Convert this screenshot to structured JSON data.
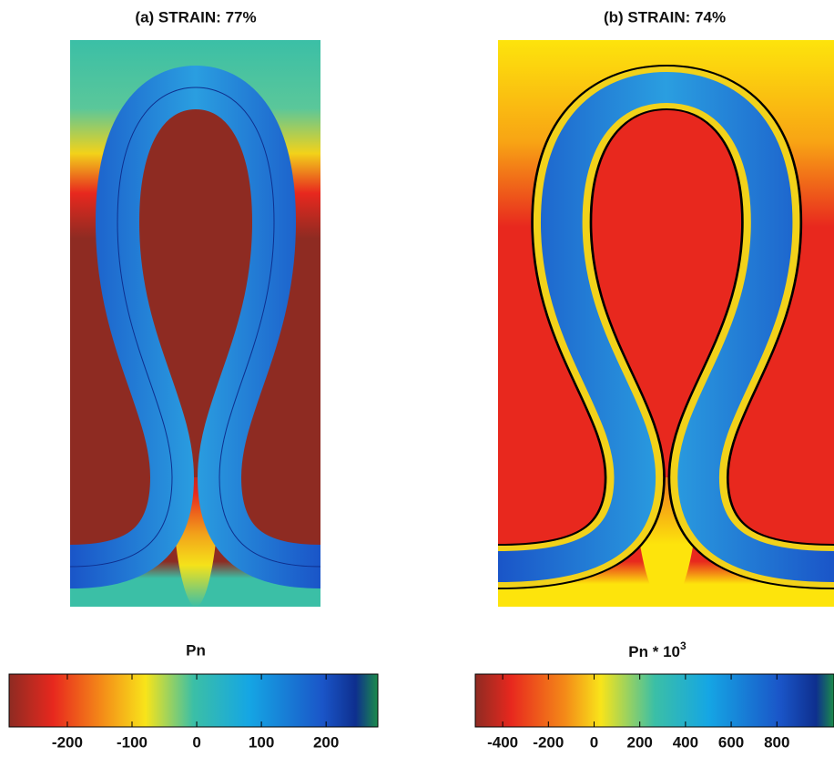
{
  "panels": [
    {
      "title": "(a)  STRAIN: 77%",
      "colorbar": {
        "label": "Pn",
        "lim": [
          -290,
          280
        ],
        "ticks": [
          -200,
          -100,
          0,
          100,
          200
        ]
      }
    },
    {
      "title": "(b)  STRAIN: 74%",
      "colorbar": {
        "label": "Pn * 10",
        "label_exponent": "3",
        "lim": [
          -520,
          1050
        ],
        "ticks": [
          -400,
          -200,
          0,
          200,
          400,
          600,
          800
        ]
      }
    }
  ]
}
